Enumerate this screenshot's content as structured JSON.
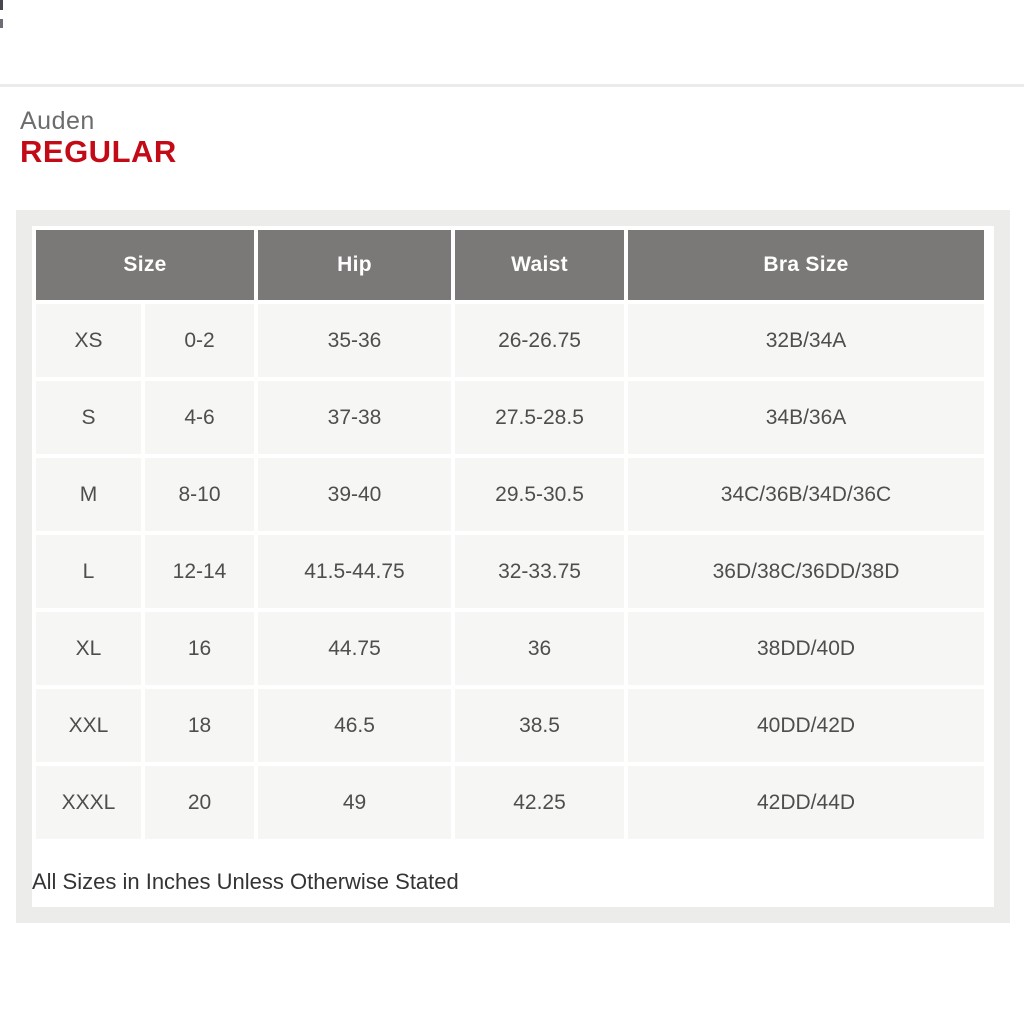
{
  "header": {
    "brand": "Auden",
    "fit": "REGULAR"
  },
  "size_chart": {
    "columns": [
      {
        "label": "Size",
        "colspan": 2
      },
      {
        "label": "Hip",
        "colspan": 1
      },
      {
        "label": "Waist",
        "colspan": 1
      },
      {
        "label": "Bra Size",
        "colspan": 1
      }
    ],
    "rows": [
      [
        "XS",
        "0-2",
        "35-36",
        "26-26.75",
        "32B/34A"
      ],
      [
        "S",
        "4-6",
        "37-38",
        "27.5-28.5",
        "34B/36A"
      ],
      [
        "M",
        "8-10",
        "39-40",
        "29.5-30.5",
        "34C/36B/34D/36C"
      ],
      [
        "L",
        "12-14",
        "41.5-44.75",
        "32-33.75",
        "36D/38C/36DD/38D"
      ],
      [
        "XL",
        "16",
        "44.75",
        "36",
        "38DD/40D"
      ],
      [
        "XXL",
        "18",
        "46.5",
        "38.5",
        "40DD/42D"
      ],
      [
        "XXXL",
        "20",
        "49",
        "42.25",
        "42DD/44D"
      ]
    ],
    "footnote": "All Sizes in Inches Unless Otherwise Stated",
    "units": "inches"
  },
  "colors": {
    "accent_red": "#c30b17",
    "brand_text": "#6c6c6c",
    "header_bg": "#7a7977",
    "header_text": "#ffffff",
    "cell_bg": "#f6f6f4",
    "body_text": "#4e4e4e",
    "panel_border": "#ececea",
    "footnote_text": "#343434"
  }
}
